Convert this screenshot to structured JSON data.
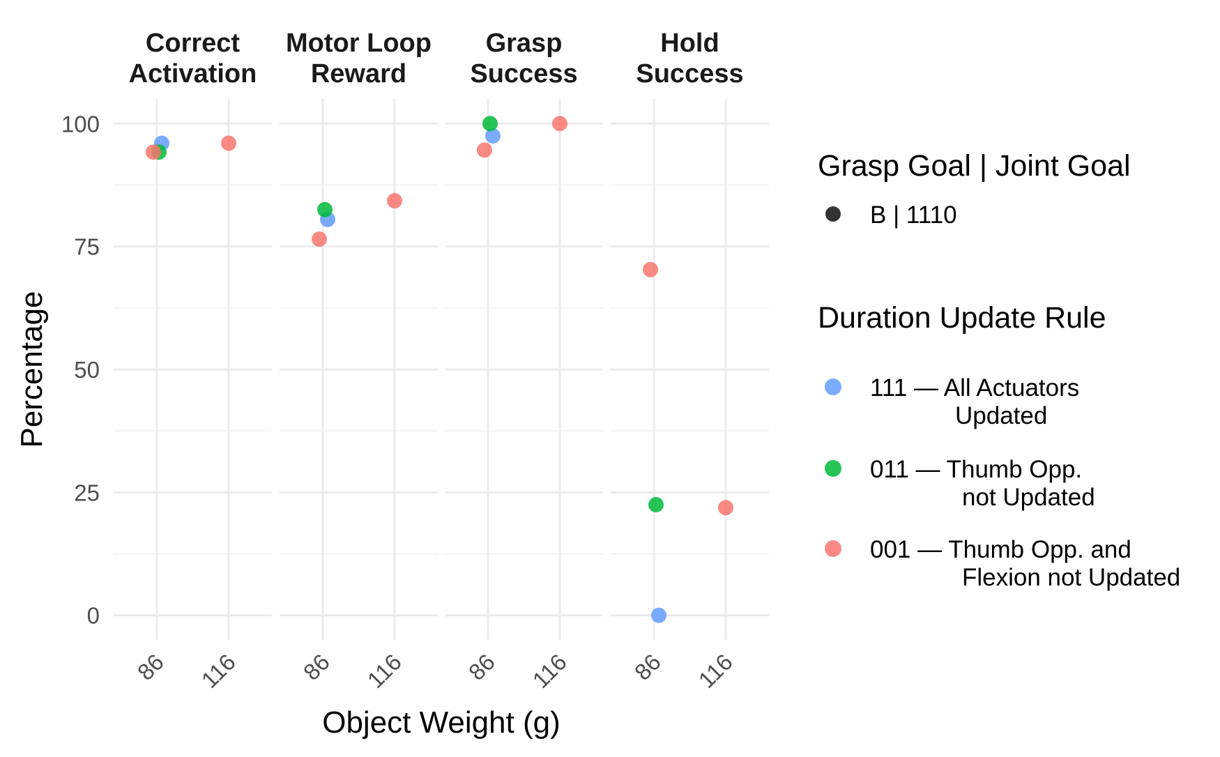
{
  "chart_data": {
    "type": "scatter",
    "xlabel": "Object Weight (g)",
    "ylabel": "Percentage",
    "ylim": [
      -5,
      105
    ],
    "y_ticks": [
      0,
      25,
      50,
      75,
      100
    ],
    "x_categories": [
      "86",
      "116"
    ],
    "grid": true,
    "legend_position": "right",
    "facets": [
      {
        "title": [
          "Correct",
          "Activation"
        ]
      },
      {
        "title": [
          "Motor Loop",
          "Reward"
        ]
      },
      {
        "title": [
          "Grasp",
          "Success"
        ]
      },
      {
        "title": [
          "Hold",
          "Success"
        ]
      }
    ],
    "series": [
      {
        "code": "111",
        "label": [
          "111 — All Actuators",
          "Updated"
        ],
        "color": "#619CFF",
        "points": [
          {
            "facet": 0,
            "x": "86",
            "y": 96.0
          },
          {
            "facet": 1,
            "x": "86",
            "y": 80.5
          },
          {
            "facet": 2,
            "x": "86",
            "y": 97.5
          },
          {
            "facet": 3,
            "x": "86",
            "y": 0.0
          }
        ]
      },
      {
        "code": "011",
        "label": [
          "011 — Thumb Opp.",
          "not Updated"
        ],
        "color": "#00BA38",
        "points": [
          {
            "facet": 0,
            "x": "86",
            "y": 94.2
          },
          {
            "facet": 1,
            "x": "86",
            "y": 82.5
          },
          {
            "facet": 2,
            "x": "86",
            "y": 100.0
          },
          {
            "facet": 3,
            "x": "86",
            "y": 22.5
          }
        ]
      },
      {
        "code": "001",
        "label": [
          "001 — Thumb Opp. and",
          "Flexion not Updated"
        ],
        "color": "#F8766D",
        "points": [
          {
            "facet": 0,
            "x": "86",
            "y": 94.2
          },
          {
            "facet": 0,
            "x": "116",
            "y": 96.0
          },
          {
            "facet": 1,
            "x": "86",
            "y": 76.5
          },
          {
            "facet": 1,
            "x": "116",
            "y": 84.3
          },
          {
            "facet": 2,
            "x": "86",
            "y": 94.6
          },
          {
            "facet": 2,
            "x": "116",
            "y": 100.0
          },
          {
            "facet": 3,
            "x": "86",
            "y": 70.3
          },
          {
            "facet": 3,
            "x": "116",
            "y": 21.9
          }
        ]
      }
    ],
    "legend": {
      "shape_title": "Grasp Goal | Joint Goal",
      "shape_entries": [
        {
          "label": "B | 1110",
          "color": "#333333"
        }
      ],
      "color_title": "Duration Update Rule"
    }
  }
}
